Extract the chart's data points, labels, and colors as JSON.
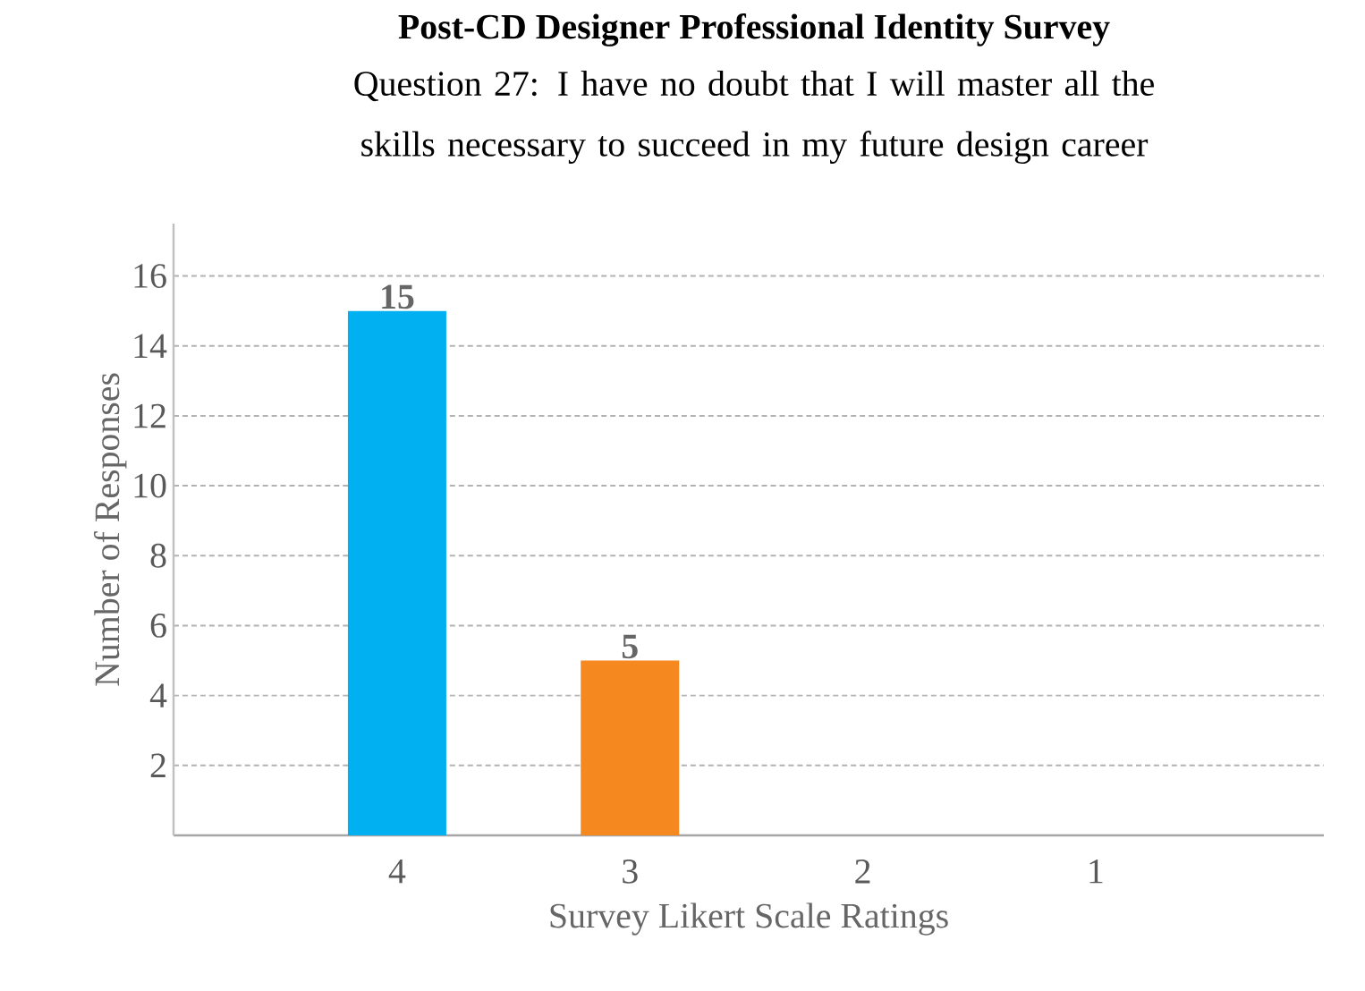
{
  "chart_data": {
    "type": "bar",
    "title": "Post-CD Designer Professional Identity Survey",
    "subtitle": "Question 27: I have no doubt that I will master all the skills necessary to succeed in my future design career",
    "categories": [
      "4",
      "3",
      "2",
      "1"
    ],
    "values": [
      15,
      5,
      0,
      0
    ],
    "colors": [
      "#00b0f0",
      "#f5891f",
      "#a5a5a5",
      "#ffc000"
    ],
    "value_labels": [
      "15",
      "5",
      null,
      null
    ],
    "xlabel": "Survey Likert Scale Ratings",
    "ylabel": "Number of Responses",
    "ylim": [
      0,
      17.5
    ],
    "yticks": [
      2,
      4,
      6,
      8,
      10,
      12,
      14,
      16
    ],
    "grid": "y"
  }
}
